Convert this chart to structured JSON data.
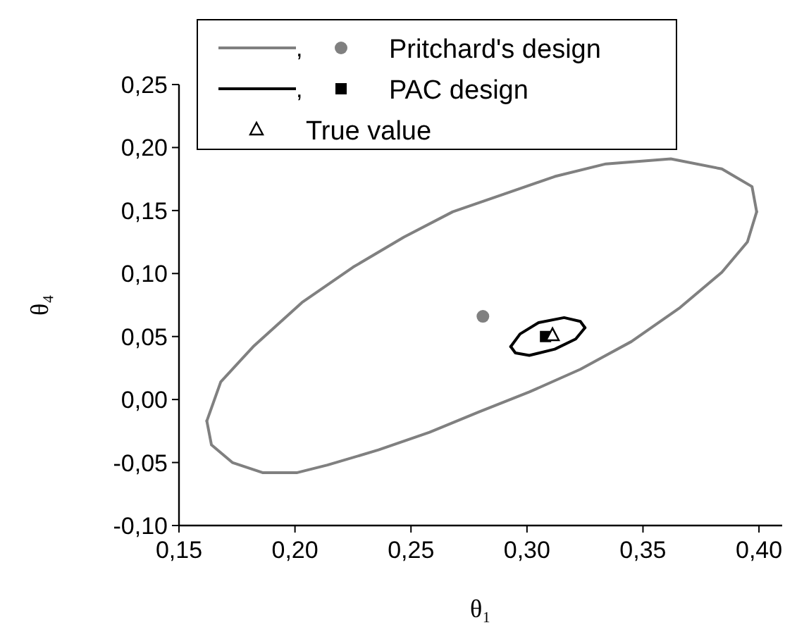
{
  "chart_data": {
    "type": "line",
    "xlabel": "θ₁",
    "ylabel": "θ₄",
    "xlim": [
      0.15,
      0.41
    ],
    "ylim": [
      -0.1,
      0.25
    ],
    "xticks": [
      {
        "value": 0.15,
        "label": "0,15"
      },
      {
        "value": 0.2,
        "label": "0,20"
      },
      {
        "value": 0.25,
        "label": "0,25"
      },
      {
        "value": 0.3,
        "label": "0,30"
      },
      {
        "value": 0.35,
        "label": "0,35"
      },
      {
        "value": 0.4,
        "label": "0,40"
      }
    ],
    "yticks": [
      {
        "value": -0.1,
        "label": "-0,10"
      },
      {
        "value": -0.05,
        "label": "-0,05"
      },
      {
        "value": 0,
        "label": "0,00"
      },
      {
        "value": 0.05,
        "label": "0,05"
      },
      {
        "value": 0.1,
        "label": "0,10"
      },
      {
        "value": 0.15,
        "label": "0,15"
      },
      {
        "value": 0.2,
        "label": "0,20"
      },
      {
        "value": 0.25,
        "label": "0,25"
      }
    ],
    "grid": false,
    "legend": "top",
    "annotations": [
      ",",
      ","
    ],
    "series": [
      {
        "name": "Pritchard's design",
        "color": "#808080",
        "marker": "none",
        "x": [
          0.162,
          0.168,
          0.182,
          0.203,
          0.225,
          0.247,
          0.268,
          0.29,
          0.312,
          0.334,
          0.362,
          0.384,
          0.397,
          0.399
        ],
        "values": [
          -0.017,
          0.014,
          0.042,
          0.077,
          0.105,
          0.129,
          0.149,
          0.163,
          0.177,
          0.187,
          0.191,
          0.183,
          0.169,
          0.149
        ]
      },
      {
        "color": "#808080",
        "marker": "none",
        "x": [
          0.162,
          0.164,
          0.173,
          0.186,
          0.201,
          0.214,
          0.236,
          0.258,
          0.279,
          0.301,
          0.323,
          0.345,
          0.366,
          0.384,
          0.395,
          0.399
        ],
        "values": [
          -0.017,
          -0.036,
          -0.05,
          -0.058,
          -0.058,
          -0.052,
          -0.04,
          -0.026,
          -0.01,
          0.006,
          0.024,
          0.046,
          0.073,
          0.101,
          0.125,
          0.149
        ]
      },
      {
        "type": "scatter",
        "color": "#808080",
        "marker": "circle",
        "x": [
          0.281
        ],
        "values": [
          0.066
        ]
      },
      {
        "name": "PAC design",
        "color": "#000000",
        "marker": "none",
        "x": [
          0.293,
          0.297,
          0.305,
          0.316,
          0.323,
          0.325
        ],
        "values": [
          0.042,
          0.052,
          0.061,
          0.065,
          0.062,
          0.057
        ]
      },
      {
        "color": "#000000",
        "marker": "none",
        "x": [
          0.293,
          0.295,
          0.301,
          0.312,
          0.321,
          0.325
        ],
        "values": [
          0.042,
          0.037,
          0.035,
          0.04,
          0.048,
          0.057
        ]
      },
      {
        "type": "scatter",
        "color": "#000000",
        "marker": "square",
        "x": [
          0.308
        ],
        "values": [
          0.05
        ]
      },
      {
        "name": "True value",
        "type": "scatter",
        "color": "#000000",
        "marker": "triangle",
        "x": [
          0.311
        ],
        "values": [
          0.051
        ]
      }
    ]
  }
}
